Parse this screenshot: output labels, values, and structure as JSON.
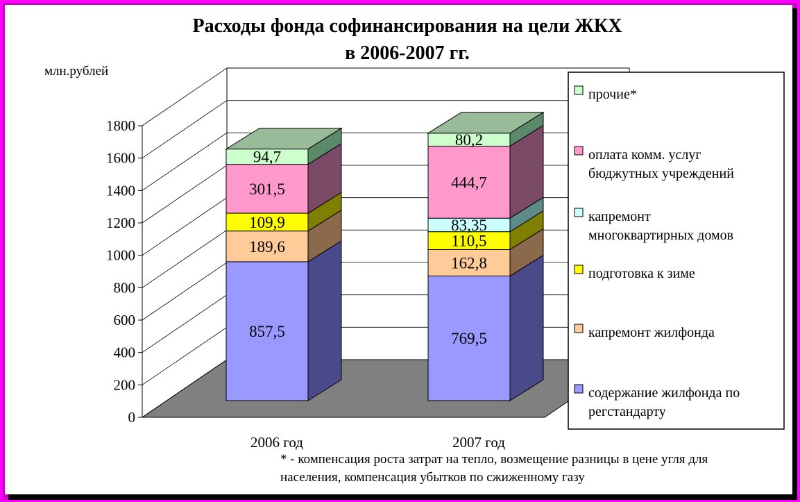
{
  "chart_data": {
    "type": "bar",
    "stacked": true,
    "three_d": true,
    "title_line1": "Расходы фонда софинансирования на цели ЖКХ",
    "title_line2": "в 2006-2007 гг.",
    "ylabel": "млн.рублей",
    "ylim": [
      0,
      1800
    ],
    "y_ticks": [
      0,
      200,
      400,
      600,
      800,
      1000,
      1200,
      1400,
      1600,
      1800
    ],
    "categories": [
      "2006 год",
      "2007 год"
    ],
    "series": [
      {
        "name": "содержание жилфонда по регстандарту",
        "values": [
          857.5,
          769.5
        ],
        "labels": [
          "857,5",
          "769,5"
        ],
        "color": "#9999ff",
        "side": "#4a4a8a",
        "top": "#7777cc"
      },
      {
        "name": "капремонт жилфонда",
        "values": [
          189.6,
          162.8
        ],
        "labels": [
          "189,6",
          "162,8"
        ],
        "color": "#ffcc99",
        "side": "#8a6a4a",
        "top": "#ccaa88"
      },
      {
        "name": "подготовка к зиме",
        "values": [
          109.9,
          110.5
        ],
        "labels": [
          "109,9",
          "110,5"
        ],
        "color": "#ffff00",
        "side": "#808000",
        "top": "#cccc00"
      },
      {
        "name": "капремонт многоквартирных домов",
        "values": [
          0,
          83.35
        ],
        "labels": [
          "",
          "83,35"
        ],
        "color": "#ccffff",
        "side": "#5f8a8a",
        "top": "#99cccc"
      },
      {
        "name": "оплата комм. услуг бюджутных учреждений",
        "values": [
          301.5,
          444.7
        ],
        "labels": [
          "301,5",
          "444,7"
        ],
        "color": "#ff99cc",
        "side": "#7a4a66",
        "top": "#cc7799"
      },
      {
        "name": "прочие*",
        "values": [
          94.7,
          80.2
        ],
        "labels": [
          "94,7",
          "80,2"
        ],
        "color": "#ccffcc",
        "side": "#5a8a6a",
        "top": "#99bb99"
      }
    ],
    "legend_order": [
      "прочие*",
      "оплата комм. услуг бюджутных учреждений",
      "капремонт многоквартирных домов",
      "подготовка к зиме",
      "капремонт жилфонда",
      "содержание жилфонда по регстандарту"
    ],
    "legend_lines": [
      [
        "прочие*"
      ],
      [
        "оплата комм. услуг",
        "бюджутных учреждений"
      ],
      [
        "капремонт",
        "многоквартирных домов"
      ],
      [
        "подготовка к зиме"
      ],
      [
        "капремонт жилфонда"
      ],
      [
        "содержание жилфонда по",
        "регстандарту"
      ]
    ],
    "legend_placement": "right",
    "grid": true
  },
  "footnote_line1": "* - компенсация роста затрат на тепло, возмещение разницы в цене угля для",
  "footnote_line2": "населения, компенсация убытков по сжиженному газу"
}
